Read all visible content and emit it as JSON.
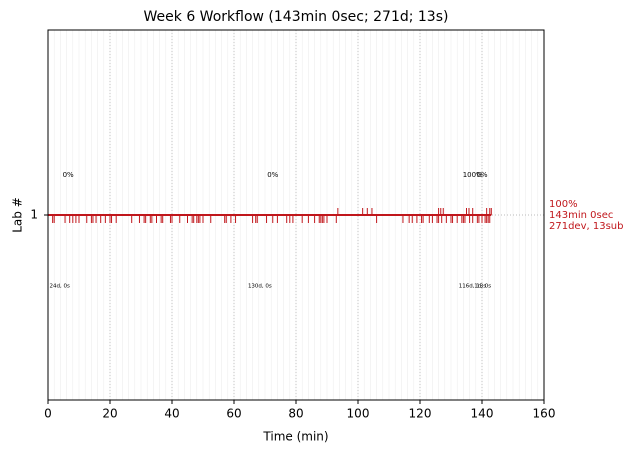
{
  "chart_data": {
    "type": "timeline",
    "title": "Week 6 Workflow (143min 0sec; 271d; 13s)",
    "xlabel": "Time (min)",
    "ylabel": "Lab #",
    "categories": [
      "1"
    ],
    "xlim": [
      0,
      160
    ],
    "xticks": [
      0,
      20,
      40,
      60,
      80,
      100,
      120,
      140,
      160
    ],
    "grid": true,
    "color": "#c0161b",
    "end": 143,
    "dev_times": [
      1.5,
      2,
      5.5,
      7,
      8,
      9,
      10,
      12.5,
      14,
      14.5,
      15.5,
      17,
      18.5,
      20,
      20.5,
      22,
      27,
      29.5,
      31,
      31.5,
      33,
      33.5,
      35,
      36.5,
      37,
      39.5,
      40,
      42.5,
      45,
      46.5,
      47,
      48,
      48.5,
      49,
      50,
      52.5,
      57,
      57.5,
      59,
      60.5,
      66,
      67,
      67.5,
      70.5,
      72.5,
      74,
      77,
      78,
      79,
      82,
      84,
      86,
      87.5,
      88,
      88.5,
      89,
      90,
      93,
      106,
      114.5,
      116.5,
      117.5,
      119,
      120.5,
      121,
      123,
      124,
      125.5,
      126,
      127,
      128.5,
      130,
      130.5,
      132,
      133.5,
      134,
      134.5,
      136,
      137,
      138.5,
      139,
      140,
      141,
      141.5,
      142,
      142.5
    ],
    "sub_times": [
      93.5,
      101.5,
      103,
      104.5,
      126,
      126.7,
      127.5,
      135,
      135.8,
      137,
      141.5,
      142.5,
      143
    ],
    "percent_labels": [
      {
        "x": 6.5,
        "text": "0%"
      },
      {
        "x": 72.5,
        "text": "0%"
      },
      {
        "x": 137,
        "text": "100%"
      },
      {
        "x": 140,
        "text": "0%"
      }
    ],
    "count_labels": [
      {
        "x": 0.5,
        "text": "24d, 0s"
      },
      {
        "x": 64.5,
        "text": "130d, 0s"
      },
      {
        "x": 132.5,
        "text": "116d, 13s"
      },
      {
        "x": 137.5,
        "text": "1d, 0s"
      }
    ],
    "summary": [
      "100%",
      "143min 0sec",
      "271dev, 13sub"
    ]
  }
}
